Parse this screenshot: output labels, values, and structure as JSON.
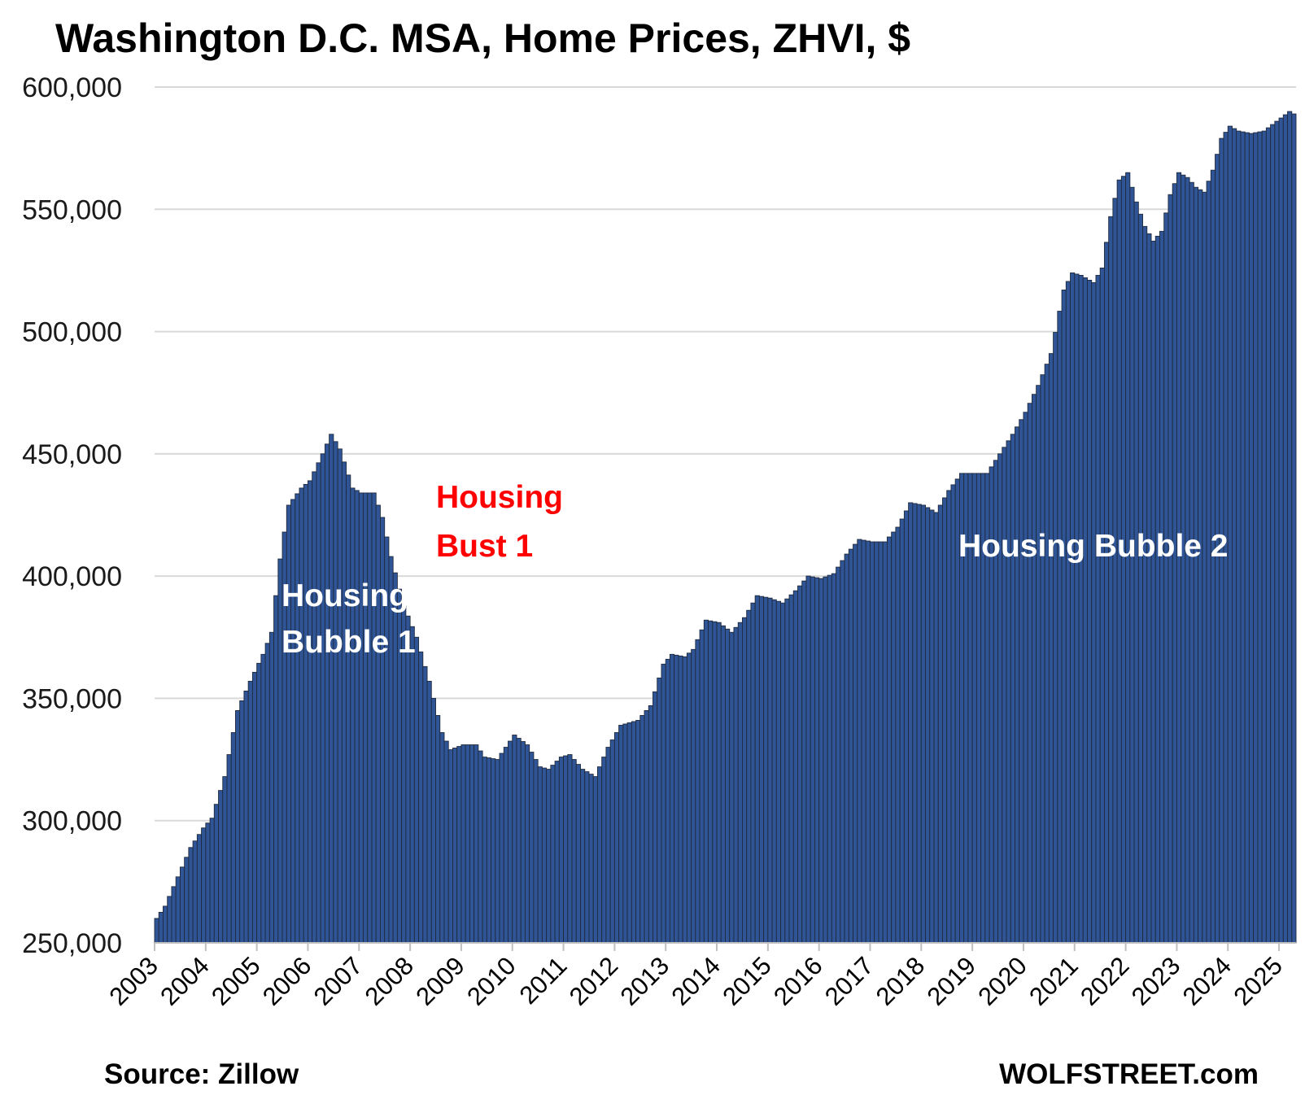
{
  "chart_data": {
    "type": "bar",
    "title": "Washington D.C. MSA, Home Prices, ZHVI, $",
    "xlabel": "",
    "ylabel": "",
    "ylim": [
      250000,
      600000
    ],
    "y_ticks": [
      "250,000",
      "300,000",
      "350,000",
      "400,000",
      "450,000",
      "500,000",
      "550,000",
      "600,000"
    ],
    "y_tick_values": [
      250000,
      300000,
      350000,
      400000,
      450000,
      500000,
      550000,
      600000
    ],
    "x_ticks": [
      "2003",
      "2004",
      "2005",
      "2006",
      "2007",
      "2008",
      "2009",
      "2010",
      "2011",
      "2012",
      "2013",
      "2014",
      "2015",
      "2016",
      "2017",
      "2018",
      "2019",
      "2020",
      "2021",
      "2022",
      "2023",
      "2024",
      "2025"
    ],
    "x_start": "2003-01",
    "x_end": "2025-04",
    "frequency": "monthly",
    "bar_color": "#2f5597",
    "bar_edge_color": "#1f2a3d",
    "grid": true,
    "series": [
      {
        "anchors": [
          [
            "2003-01",
            260000
          ],
          [
            "2003-03",
            265000
          ],
          [
            "2003-06",
            277000
          ],
          [
            "2003-09",
            289000
          ],
          [
            "2003-12",
            297000
          ],
          [
            "2004-02",
            301000
          ],
          [
            "2004-05",
            318000
          ],
          [
            "2004-08",
            345000
          ],
          [
            "2004-11",
            357000
          ],
          [
            "2005-02",
            368000
          ],
          [
            "2005-04",
            377000
          ],
          [
            "2005-06",
            407000
          ],
          [
            "2005-08",
            429000
          ],
          [
            "2005-11",
            436000
          ],
          [
            "2006-01",
            439000
          ],
          [
            "2006-04",
            450000
          ],
          [
            "2006-06",
            458000
          ],
          [
            "2006-08",
            452000
          ],
          [
            "2006-11",
            436000
          ],
          [
            "2007-01",
            434000
          ],
          [
            "2007-04",
            434000
          ],
          [
            "2007-06",
            424000
          ],
          [
            "2007-08",
            408000
          ],
          [
            "2007-11",
            388000
          ],
          [
            "2008-02",
            375000
          ],
          [
            "2008-05",
            357000
          ],
          [
            "2008-08",
            336000
          ],
          [
            "2008-10",
            329000
          ],
          [
            "2009-01",
            331000
          ],
          [
            "2009-04",
            331000
          ],
          [
            "2009-06",
            326000
          ],
          [
            "2009-09",
            325000
          ],
          [
            "2009-11",
            330000
          ],
          [
            "2010-01",
            335000
          ],
          [
            "2010-04",
            331000
          ],
          [
            "2010-07",
            322000
          ],
          [
            "2010-09",
            321000
          ],
          [
            "2010-12",
            326000
          ],
          [
            "2011-02",
            327000
          ],
          [
            "2011-05",
            321000
          ],
          [
            "2011-08",
            318000
          ],
          [
            "2011-11",
            330000
          ],
          [
            "2012-02",
            339000
          ],
          [
            "2012-06",
            341000
          ],
          [
            "2012-09",
            347000
          ],
          [
            "2012-12",
            364000
          ],
          [
            "2013-02",
            368000
          ],
          [
            "2013-05",
            367000
          ],
          [
            "2013-07",
            370000
          ],
          [
            "2013-10",
            382000
          ],
          [
            "2014-01",
            381000
          ],
          [
            "2014-04",
            377000
          ],
          [
            "2014-07",
            383000
          ],
          [
            "2014-10",
            392000
          ],
          [
            "2015-01",
            391000
          ],
          [
            "2015-04",
            389000
          ],
          [
            "2015-07",
            394000
          ],
          [
            "2015-10",
            400000
          ],
          [
            "2016-01",
            399000
          ],
          [
            "2016-04",
            401000
          ],
          [
            "2016-07",
            409000
          ],
          [
            "2016-10",
            415000
          ],
          [
            "2017-01",
            414000
          ],
          [
            "2017-04",
            414000
          ],
          [
            "2017-07",
            420000
          ],
          [
            "2017-10",
            430000
          ],
          [
            "2018-01",
            429000
          ],
          [
            "2018-04",
            426000
          ],
          [
            "2018-07",
            435000
          ],
          [
            "2018-10",
            442000
          ],
          [
            "2019-01",
            442000
          ],
          [
            "2019-04",
            442000
          ],
          [
            "2019-07",
            450000
          ],
          [
            "2019-10",
            458000
          ],
          [
            "2020-01",
            467000
          ],
          [
            "2020-04",
            478000
          ],
          [
            "2020-07",
            491000
          ],
          [
            "2020-10",
            517000
          ],
          [
            "2020-12",
            524000
          ],
          [
            "2021-02",
            523000
          ],
          [
            "2021-05",
            520000
          ],
          [
            "2021-07",
            526000
          ],
          [
            "2021-09",
            547000
          ],
          [
            "2021-11",
            562000
          ],
          [
            "2022-01",
            565000
          ],
          [
            "2022-03",
            553000
          ],
          [
            "2022-05",
            543000
          ],
          [
            "2022-07",
            537000
          ],
          [
            "2022-09",
            541000
          ],
          [
            "2022-11",
            556000
          ],
          [
            "2023-01",
            565000
          ],
          [
            "2023-03",
            563000
          ],
          [
            "2023-05",
            559000
          ],
          [
            "2023-07",
            557000
          ],
          [
            "2023-09",
            566000
          ],
          [
            "2023-11",
            579000
          ],
          [
            "2024-01",
            584000
          ],
          [
            "2024-03",
            582000
          ],
          [
            "2024-06",
            581000
          ],
          [
            "2024-09",
            582000
          ],
          [
            "2024-12",
            586000
          ],
          [
            "2025-03",
            590000
          ],
          [
            "2025-04",
            589000
          ]
        ]
      }
    ],
    "annotations": [
      {
        "id": "bubble1-line1",
        "text": "Housing",
        "color": "#ffffff"
      },
      {
        "id": "bubble1-line2",
        "text": "Bubble 1",
        "color": "#ffffff"
      },
      {
        "id": "bust1-line1",
        "text": "Housing",
        "color": "#ff0000"
      },
      {
        "id": "bust1-line2",
        "text": "Bust 1",
        "color": "#ff0000"
      },
      {
        "id": "bubble2",
        "text": "Housing Bubble 2",
        "color": "#ffffff"
      }
    ],
    "source": "Source: Zillow",
    "brand": "WOLFSTREET.com"
  }
}
